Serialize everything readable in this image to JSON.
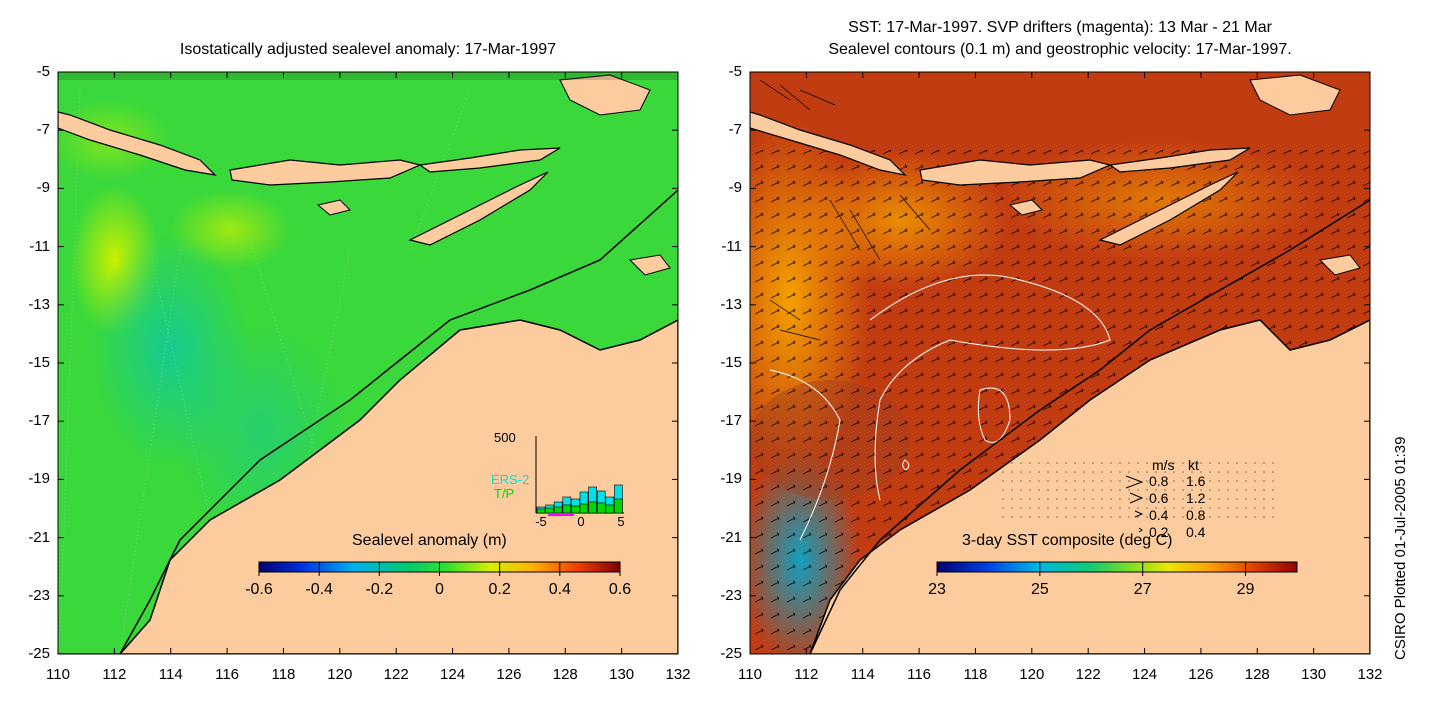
{
  "left_panel": {
    "title": "Isostatically adjusted sealevel anomaly: 17-Mar-1997",
    "x_ticks": [
      "110",
      "112",
      "114",
      "116",
      "118",
      "120",
      "122",
      "124",
      "126",
      "128",
      "130",
      "132"
    ],
    "y_ticks": [
      "-5",
      "-7",
      "-9",
      "-11",
      "-13",
      "-15",
      "-17",
      "-19",
      "-21",
      "-23",
      "-25"
    ],
    "colorbar": {
      "label": "Sealevel anomaly (m)",
      "ticks": [
        "-0.6",
        "-0.4",
        "-0.2",
        "0",
        "0.2",
        "0.4",
        "0.6"
      ],
      "range": [
        -0.6,
        0.6
      ]
    },
    "inset_histogram": {
      "y_max_label": "500",
      "series_labels": [
        "ERS-2",
        "T/P"
      ],
      "x_ticks": [
        "-5",
        "0",
        "5"
      ],
      "ers2_color": "#00e0e8",
      "tp_color": "#00d800"
    }
  },
  "right_panel": {
    "title_line1": "SST: 17-Mar-1997. SVP drifters (magenta): 13 Mar - 21 Mar",
    "title_line2": "Sealevel contours (0.1 m) and geostrophic velocity: 17-Mar-1997.",
    "x_ticks": [
      "110",
      "112",
      "114",
      "116",
      "118",
      "120",
      "122",
      "124",
      "126",
      "128",
      "130",
      "132"
    ],
    "y_ticks": [
      "-5",
      "-7",
      "-9",
      "-11",
      "-13",
      "-15",
      "-17",
      "-19",
      "-21",
      "-23",
      "-25"
    ],
    "colorbar": {
      "label": "3-day SST composite (deg C)",
      "ticks": [
        "23",
        "25",
        "27",
        "29"
      ],
      "range": [
        23,
        30
      ]
    },
    "velocity_legend": {
      "header_ms": "m/s",
      "header_kt": "kt",
      "rows": [
        {
          "ms": "0.8",
          "kt": "1.6"
        },
        {
          "ms": "0.6",
          "kt": "1.2"
        },
        {
          "ms": "0.4",
          "kt": "0.8"
        },
        {
          "ms": "0.2",
          "kt": "0.4"
        }
      ]
    }
  },
  "credit": "CSIRO Plotted 01-Jul-2005 01:39",
  "colors": {
    "land": "#fdcc9e",
    "sla_background": "#38d838",
    "sst_background": "#c83a12"
  }
}
